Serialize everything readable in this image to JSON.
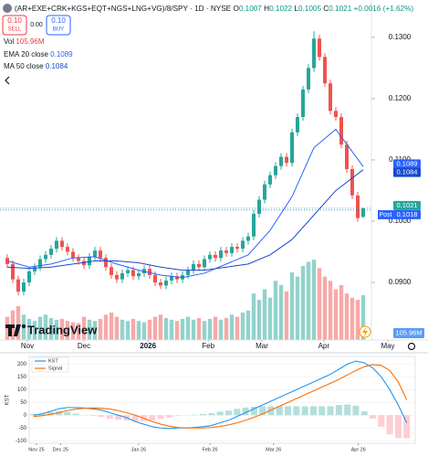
{
  "chart_data": [
    {
      "type": "candlestick",
      "title": "(AR+EXE+CRK+KGS+EQT+NGS+LNG+VG)/8/SPY · 1D · NYSE",
      "ohlc": [
        {
          "label": "O",
          "value": "0.1007"
        },
        {
          "label": "H",
          "value": "0.1022"
        },
        {
          "label": "L",
          "value": "0.1005"
        },
        {
          "label": "C",
          "value": "0.1021"
        }
      ],
      "change": "+0.0016 (+1.62%)",
      "trade": {
        "sell_price": "0.10",
        "sell_label": "SELL",
        "spread": "0.00",
        "buy_price": "0.10",
        "buy_label": "BUY"
      },
      "indicators": [
        {
          "name": "Vol",
          "value": "105.96M"
        },
        {
          "name": "EMA 20 close",
          "value": "0.1089"
        },
        {
          "name": "MA 50 close",
          "value": "0.1084"
        }
      ],
      "watermark": "TradingView",
      "up_color": "#26a69a",
      "down_color": "#ef5350",
      "open": [
        0.094,
        0.093,
        0.0905,
        0.0885,
        0.09,
        0.0918,
        0.0925,
        0.0938,
        0.0945,
        0.0955,
        0.0968,
        0.0958,
        0.095,
        0.094,
        0.0935,
        0.0928,
        0.0942,
        0.0952,
        0.094,
        0.0925,
        0.0912,
        0.0905,
        0.0915,
        0.092,
        0.091,
        0.0915,
        0.0922,
        0.0912,
        0.09,
        0.0895,
        0.0903,
        0.091,
        0.0905,
        0.0912,
        0.092,
        0.093,
        0.0925,
        0.0938,
        0.0945,
        0.094,
        0.0952,
        0.0948,
        0.0958,
        0.0955,
        0.0968,
        0.0975,
        0.1012,
        0.1035,
        0.106,
        0.1075,
        0.109,
        0.1105,
        0.1095,
        0.1145,
        0.117,
        0.1215,
        0.125,
        0.1298,
        0.1268,
        0.1225,
        0.118,
        0.117,
        0.1125,
        0.1085,
        0.1042,
        0.1007
      ],
      "high": [
        0.0946,
        0.0936,
        0.0911,
        0.0906,
        0.0924,
        0.0931,
        0.0944,
        0.0951,
        0.0961,
        0.0974,
        0.0974,
        0.0964,
        0.0956,
        0.0946,
        0.0941,
        0.0948,
        0.0958,
        0.0958,
        0.0946,
        0.0931,
        0.0918,
        0.0921,
        0.0926,
        0.0926,
        0.0921,
        0.0928,
        0.0928,
        0.0918,
        0.0906,
        0.0909,
        0.0916,
        0.0916,
        0.0918,
        0.0926,
        0.0936,
        0.0936,
        0.0944,
        0.0951,
        0.0951,
        0.0958,
        0.0958,
        0.0964,
        0.0964,
        0.0974,
        0.0981,
        0.1018,
        0.1041,
        0.1066,
        0.1081,
        0.1096,
        0.1111,
        0.1111,
        0.1151,
        0.1176,
        0.1221,
        0.1256,
        0.131,
        0.1304,
        0.1274,
        0.1231,
        0.1186,
        0.1176,
        0.1131,
        0.1091,
        0.1048,
        0.1022
      ],
      "low": [
        0.0924,
        0.0899,
        0.0879,
        0.0879,
        0.0894,
        0.0912,
        0.0919,
        0.0932,
        0.0939,
        0.0949,
        0.0952,
        0.0944,
        0.0934,
        0.0929,
        0.0922,
        0.0922,
        0.0936,
        0.0934,
        0.0919,
        0.0906,
        0.0899,
        0.0899,
        0.0909,
        0.0904,
        0.0904,
        0.0909,
        0.0906,
        0.0894,
        0.0889,
        0.0889,
        0.0897,
        0.0899,
        0.0899,
        0.0906,
        0.0914,
        0.0919,
        0.0919,
        0.0932,
        0.0934,
        0.0934,
        0.0942,
        0.0942,
        0.0949,
        0.0949,
        0.0962,
        0.0969,
        0.1006,
        0.1029,
        0.1054,
        0.1069,
        0.1084,
        0.1089,
        0.1089,
        0.1139,
        0.1164,
        0.1209,
        0.1244,
        0.1262,
        0.1219,
        0.1174,
        0.1164,
        0.1119,
        0.1079,
        0.1036,
        0.0999,
        0.1005
      ],
      "close": [
        0.093,
        0.0905,
        0.0885,
        0.09,
        0.0918,
        0.0925,
        0.0938,
        0.0945,
        0.0955,
        0.0968,
        0.0958,
        0.095,
        0.094,
        0.0935,
        0.0928,
        0.0942,
        0.0952,
        0.094,
        0.0925,
        0.0912,
        0.0905,
        0.0915,
        0.092,
        0.091,
        0.0915,
        0.0922,
        0.0912,
        0.09,
        0.0895,
        0.0903,
        0.091,
        0.0905,
        0.0912,
        0.092,
        0.093,
        0.0925,
        0.0938,
        0.0945,
        0.094,
        0.0952,
        0.0948,
        0.0958,
        0.0955,
        0.0968,
        0.0975,
        0.1012,
        0.1035,
        0.106,
        0.1075,
        0.109,
        0.1105,
        0.1095,
        0.1145,
        0.117,
        0.1215,
        0.125,
        0.1298,
        0.1268,
        0.1225,
        0.118,
        0.117,
        0.1125,
        0.1085,
        0.1042,
        0.1005,
        0.1021
      ],
      "volume": [
        55,
        70,
        80,
        60,
        50,
        45,
        55,
        60,
        52,
        48,
        50,
        45,
        42,
        40,
        55,
        48,
        45,
        50,
        60,
        65,
        55,
        48,
        45,
        50,
        45,
        42,
        48,
        55,
        60,
        52,
        48,
        45,
        50,
        55,
        48,
        52,
        45,
        50,
        55,
        48,
        52,
        60,
        55,
        65,
        70,
        110,
        95,
        120,
        100,
        140,
        130,
        115,
        160,
        150,
        175,
        185,
        190,
        170,
        150,
        140,
        120,
        130,
        110,
        100,
        95,
        105.96
      ],
      "vlim": [
        0,
        800
      ],
      "series": [
        {
          "name": "EMA 20 close",
          "color": "#2962ff",
          "x": [
            0,
            4,
            8,
            12,
            16,
            20,
            24,
            28,
            32,
            36,
            40,
            44,
            48,
            52,
            56,
            60,
            65
          ],
          "values": [
            0.0935,
            0.0925,
            0.093,
            0.094,
            0.0942,
            0.093,
            0.092,
            0.0912,
            0.0908,
            0.0915,
            0.093,
            0.0945,
            0.0985,
            0.104,
            0.112,
            0.115,
            0.1089
          ]
        },
        {
          "name": "MA 50 close",
          "color": "#1848cc",
          "x": [
            0,
            4,
            8,
            12,
            16,
            20,
            24,
            28,
            32,
            36,
            40,
            44,
            48,
            52,
            56,
            60,
            65
          ],
          "values": [
            0.0925,
            0.0923,
            0.0925,
            0.093,
            0.0935,
            0.0935,
            0.0932,
            0.0925,
            0.092,
            0.092,
            0.0925,
            0.093,
            0.0945,
            0.097,
            0.101,
            0.105,
            0.1084
          ]
        }
      ],
      "price_tags": [
        {
          "value": 0.1089,
          "color": "#2962ff"
        },
        {
          "value": 0.1084,
          "color": "#1848cc"
        },
        {
          "value": 0.1021,
          "color": "#26a69a"
        },
        {
          "value": 0.1018,
          "label": "Post",
          "color": "#2962ff"
        }
      ],
      "xlim": [
        -1.33,
        66.5
      ],
      "xticks": [
        {
          "value": 3.67,
          "label": "Nov"
        },
        {
          "value": 14,
          "label": "Dec"
        },
        {
          "value": 25.7,
          "label": "2026"
        },
        {
          "value": 36.7,
          "label": "Feb"
        },
        {
          "value": 46.5,
          "label": "Mar"
        },
        {
          "value": 57.8,
          "label": "Apr"
        },
        {
          "value": 69.5,
          "label": "May"
        }
      ],
      "ylim": [
        0.0809,
        0.1361
      ],
      "yticks": [
        {
          "value": 0.09,
          "label": "0.0900"
        },
        {
          "value": 0.1,
          "label": "0.1000"
        },
        {
          "value": 0.11,
          "label": "0.1100"
        },
        {
          "value": 0.12,
          "label": "0.1200"
        },
        {
          "value": 0.13,
          "label": "0.1300"
        }
      ],
      "grid": false
    },
    {
      "type": "kst",
      "ylabel": "KST",
      "series": [
        {
          "name": "KST",
          "color": "#2196f3",
          "values": [
            0,
            5,
            15,
            25,
            30,
            30,
            28,
            25,
            20,
            10,
            0,
            -10,
            -25,
            -35,
            -45,
            -50,
            -52,
            -50,
            -50,
            -48,
            -45,
            -40,
            -30,
            -20,
            -5,
            10,
            25,
            40,
            55,
            70,
            85,
            100,
            115,
            130,
            145,
            160,
            180,
            200,
            212,
            205,
            185,
            150,
            100,
            40,
            -30
          ]
        },
        {
          "name": "Signal",
          "color": "#ff6d00",
          "values": [
            -5,
            -2,
            3,
            10,
            18,
            24,
            27,
            28,
            27,
            24,
            18,
            10,
            0,
            -12,
            -25,
            -35,
            -43,
            -48,
            -50,
            -50,
            -50,
            -48,
            -44,
            -38,
            -30,
            -20,
            -8,
            5,
            20,
            35,
            50,
            65,
            80,
            95,
            110,
            125,
            140,
            158,
            175,
            190,
            198,
            195,
            175,
            130,
            60
          ]
        }
      ],
      "histogram": [
        5,
        7,
        12,
        15,
        12,
        6,
        1,
        -3,
        -7,
        -14,
        -18,
        -20,
        -25,
        -23,
        -20,
        -15,
        -9,
        -2,
        0,
        2,
        5,
        8,
        14,
        18,
        25,
        30,
        33,
        35,
        35,
        35,
        35,
        35,
        35,
        35,
        35,
        35,
        40,
        42,
        37,
        15,
        -13,
        -45,
        -75,
        -90,
        -90
      ],
      "pos_color": "#b2dfdb",
      "neg_color": "#ffcdd2",
      "xlim": [
        -0.5,
        45
      ],
      "xticks": [
        {
          "value": 0.36,
          "label": "Nov 25"
        },
        {
          "value": 3.2,
          "label": "Dec 25"
        },
        {
          "value": 12.4,
          "label": "Jan 26"
        },
        {
          "value": 20.8,
          "label": "Feb 26"
        },
        {
          "value": 28.3,
          "label": "Mar 26"
        },
        {
          "value": 38.3,
          "label": "Apr 26"
        }
      ],
      "ylim": [
        -110,
        230
      ],
      "yticks": [
        -100,
        -50,
        0,
        50,
        100,
        150,
        200
      ],
      "grid": true
    }
  ]
}
